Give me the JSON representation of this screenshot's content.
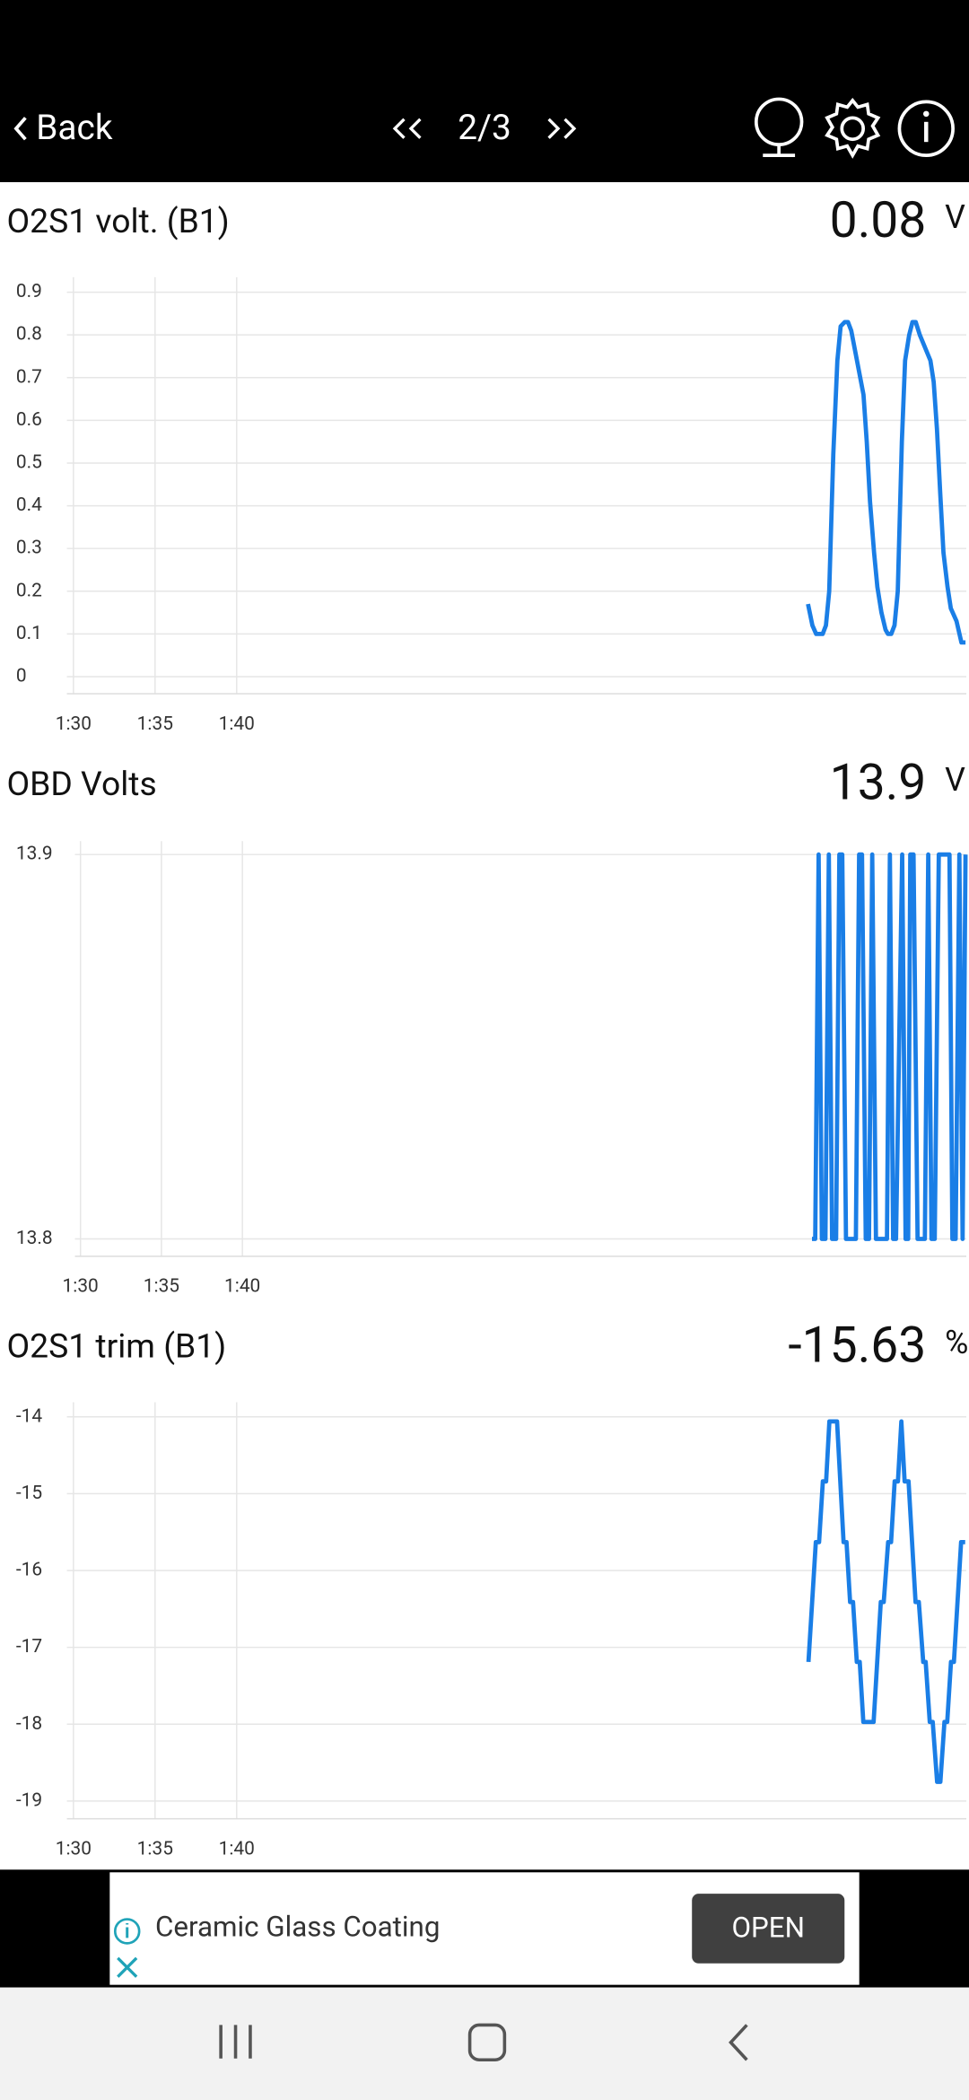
{
  "header": {
    "back": "Back",
    "page": "2/3"
  },
  "chart_data": [
    {
      "type": "line",
      "title": "O2S1 volt. (B1)",
      "current_value": 0.08,
      "unit": "V",
      "color": "#1a7ee6",
      "x": [
        135.0,
        135.27,
        135.5,
        135.9,
        136.1,
        136.3,
        136.55,
        136.8,
        137.0,
        137.25,
        137.45,
        137.65,
        137.9,
        138.4,
        138.6,
        138.8,
        139.05,
        139.25,
        139.5,
        139.75,
        139.9,
        140.1,
        140.3,
        140.5,
        140.75,
        140.95,
        141.2,
        141.4,
        141.6,
        141.85,
        142.5,
        142.7,
        142.9,
        143.1,
        143.3,
        143.55,
        143.75,
        144.1,
        144.4,
        144.65
      ],
      "values": [
        0.17,
        0.12,
        0.1,
        0.1,
        0.12,
        0.2,
        0.52,
        0.74,
        0.82,
        0.83,
        0.83,
        0.81,
        0.76,
        0.66,
        0.55,
        0.41,
        0.29,
        0.21,
        0.15,
        0.11,
        0.1,
        0.1,
        0.12,
        0.2,
        0.55,
        0.74,
        0.8,
        0.83,
        0.83,
        0.8,
        0.74,
        0.69,
        0.58,
        0.43,
        0.29,
        0.21,
        0.16,
        0.13,
        0.08,
        0.08
      ],
      "xlim": [
        89.6,
        144.7
      ],
      "xticks": [
        {
          "value": 90,
          "label": "1:30"
        },
        {
          "value": 95,
          "label": "1:35"
        },
        {
          "value": 100,
          "label": "1:40"
        }
      ],
      "ylim": [
        -0.04,
        0.935
      ],
      "yticks": [
        0,
        0.1,
        0.2,
        0.3,
        0.4,
        0.5,
        0.6,
        0.7,
        0.8,
        0.9
      ],
      "grid": true
    },
    {
      "type": "line",
      "title": "OBD Volts",
      "current_value": 13.9,
      "unit": "V",
      "color": "#1a7ee6",
      "x": [
        135.17,
        135.37,
        135.58,
        135.78,
        136.0,
        136.21,
        136.41,
        136.66,
        136.86,
        137.04,
        137.27,
        137.88,
        138.08,
        138.26,
        138.49,
        138.69,
        138.89,
        139.12,
        139.8,
        139.98,
        140.18,
        140.36,
        140.74,
        140.95,
        141.11,
        141.24,
        141.44,
        141.69,
        142.14,
        142.35,
        142.55,
        142.75,
        143.0,
        143.66,
        143.84,
        144.04,
        144.27,
        144.47,
        144.65
      ],
      "values": [
        13.8,
        13.8,
        13.9,
        13.8,
        13.8,
        13.9,
        13.8,
        13.8,
        13.9,
        13.9,
        13.8,
        13.8,
        13.9,
        13.9,
        13.8,
        13.8,
        13.9,
        13.8,
        13.8,
        13.9,
        13.8,
        13.8,
        13.9,
        13.8,
        13.8,
        13.9,
        13.9,
        13.8,
        13.8,
        13.9,
        13.8,
        13.8,
        13.9,
        13.9,
        13.8,
        13.8,
        13.9,
        13.8,
        13.9
      ],
      "xlim": [
        89.66,
        144.7
      ],
      "xticks": [
        {
          "value": 90,
          "label": "1:30"
        },
        {
          "value": 95,
          "label": "1:35"
        },
        {
          "value": 100,
          "label": "1:40"
        }
      ],
      "ylim": [
        13.7955,
        13.9035
      ],
      "yticks": [
        13.8,
        13.9
      ],
      "grid": true
    },
    {
      "type": "line",
      "title": "O2S1 trim (B1)",
      "current_value": -15.63,
      "unit": "%",
      "color": "#1a7ee6",
      "x": [
        135.03,
        135.48,
        135.68,
        135.91,
        136.11,
        136.31,
        136.78,
        137.18,
        137.36,
        137.58,
        137.76,
        137.99,
        138.17,
        138.39,
        139.02,
        139.46,
        139.64,
        139.91,
        140.09,
        140.31,
        140.51,
        140.72,
        140.92,
        141.16,
        141.59,
        141.79,
        142.06,
        142.21,
        142.46,
        142.64,
        142.91,
        143.11,
        143.36,
        143.53,
        143.76,
        143.94,
        144.38,
        144.63
      ],
      "values": [
        -17.19,
        -15.63,
        -15.63,
        -14.84,
        -14.84,
        -14.06,
        -14.06,
        -15.63,
        -15.63,
        -16.41,
        -16.41,
        -17.19,
        -17.19,
        -17.97,
        -17.97,
        -16.41,
        -16.41,
        -15.63,
        -15.63,
        -14.84,
        -14.84,
        -14.06,
        -14.84,
        -14.84,
        -16.41,
        -16.41,
        -17.19,
        -17.19,
        -17.97,
        -17.97,
        -18.75,
        -18.75,
        -17.97,
        -17.97,
        -17.19,
        -17.19,
        -15.63,
        -15.63
      ],
      "xlim": [
        89.6,
        144.7
      ],
      "xticks": [
        {
          "value": 90,
          "label": "1:30"
        },
        {
          "value": 95,
          "label": "1:35"
        },
        {
          "value": 100,
          "label": "1:40"
        }
      ],
      "ylim": [
        -19.23,
        -13.81
      ],
      "yticks": [
        -19,
        -18,
        -17,
        -16,
        -15,
        -14
      ],
      "grid": true
    }
  ],
  "ad": {
    "text": "Ceramic Glass Coating",
    "button": "OPEN"
  }
}
